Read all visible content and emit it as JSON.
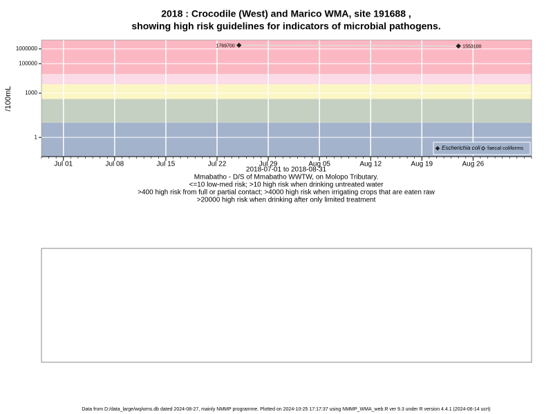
{
  "chart_data": {
    "type": "scatter",
    "title": "2018 : Crocodile (West) and Marico WMA, site 191688 ,",
    "subtitle": "showing high risk guidelines for indicators of microbial pathogens.",
    "y_label": "/100mL",
    "log_y": true,
    "grid": true,
    "legend": "bottom-right",
    "xlim": [
      "2018-06-28",
      "2018-09-03"
    ],
    "xticks": [
      {
        "value": "2018-07-01",
        "label": "Jul 01"
      },
      {
        "value": "2018-07-08",
        "label": "Jul 08"
      },
      {
        "value": "2018-07-15",
        "label": "Jul 15"
      },
      {
        "value": "2018-07-22",
        "label": "Jul 22"
      },
      {
        "value": "2018-07-29",
        "label": "Jul 29"
      },
      {
        "value": "2018-08-05",
        "label": "Aug 05"
      },
      {
        "value": "2018-08-12",
        "label": "Aug 12"
      },
      {
        "value": "2018-08-19",
        "label": "Aug 19"
      },
      {
        "value": "2018-08-26",
        "label": "Aug 26"
      }
    ],
    "ylim": [
      0.05,
      4000000
    ],
    "yticks": [
      1,
      1000,
      100000,
      1000000
    ],
    "guideline_bands": [
      {
        "from": 0.05,
        "to": 10,
        "color": "#a3b3cc"
      },
      {
        "from": 10,
        "to": 400,
        "color": "#c5d0c2"
      },
      {
        "from": 400,
        "to": 4000,
        "color": "#fcf6c4"
      },
      {
        "from": 4000,
        "to": 20000,
        "color": "#fbdbe6"
      },
      {
        "from": 20000,
        "to": 4000000,
        "color": "#fbb8c3"
      }
    ],
    "series": [
      {
        "name": "Escherichia coli",
        "color": "#222222",
        "marker": "filled",
        "x": [
          "2018-07-25",
          "2018-08-24"
        ],
        "values": [
          1769700,
          1553100
        ]
      },
      {
        "name": "faecal coliforms",
        "color": "#222222",
        "marker": "open",
        "x": [],
        "values": []
      }
    ],
    "captions": [
      "2018-07-01 to 2018-08-31",
      "Mmabatho - D/S of Mmabatho WWTW, on Molopo Tributary.",
      "<=10 low-med risk; >10 high risk when drinking untreated water",
      ">400 high risk from full or partial contact; >4000 high risk when irrigating crops that are eaten raw",
      ">20000 high risk when drinking after only limited treatment"
    ],
    "footer": "Data from D:/data_large/wq/wms.db dated 2024-08-27, mainly NMMP programme. Plotted on 2024-10-25 17:17:37 using NMMP_WMA_web.R ver 9.3 under R version 4.4.1 (2024-06-14 ucrt)"
  }
}
